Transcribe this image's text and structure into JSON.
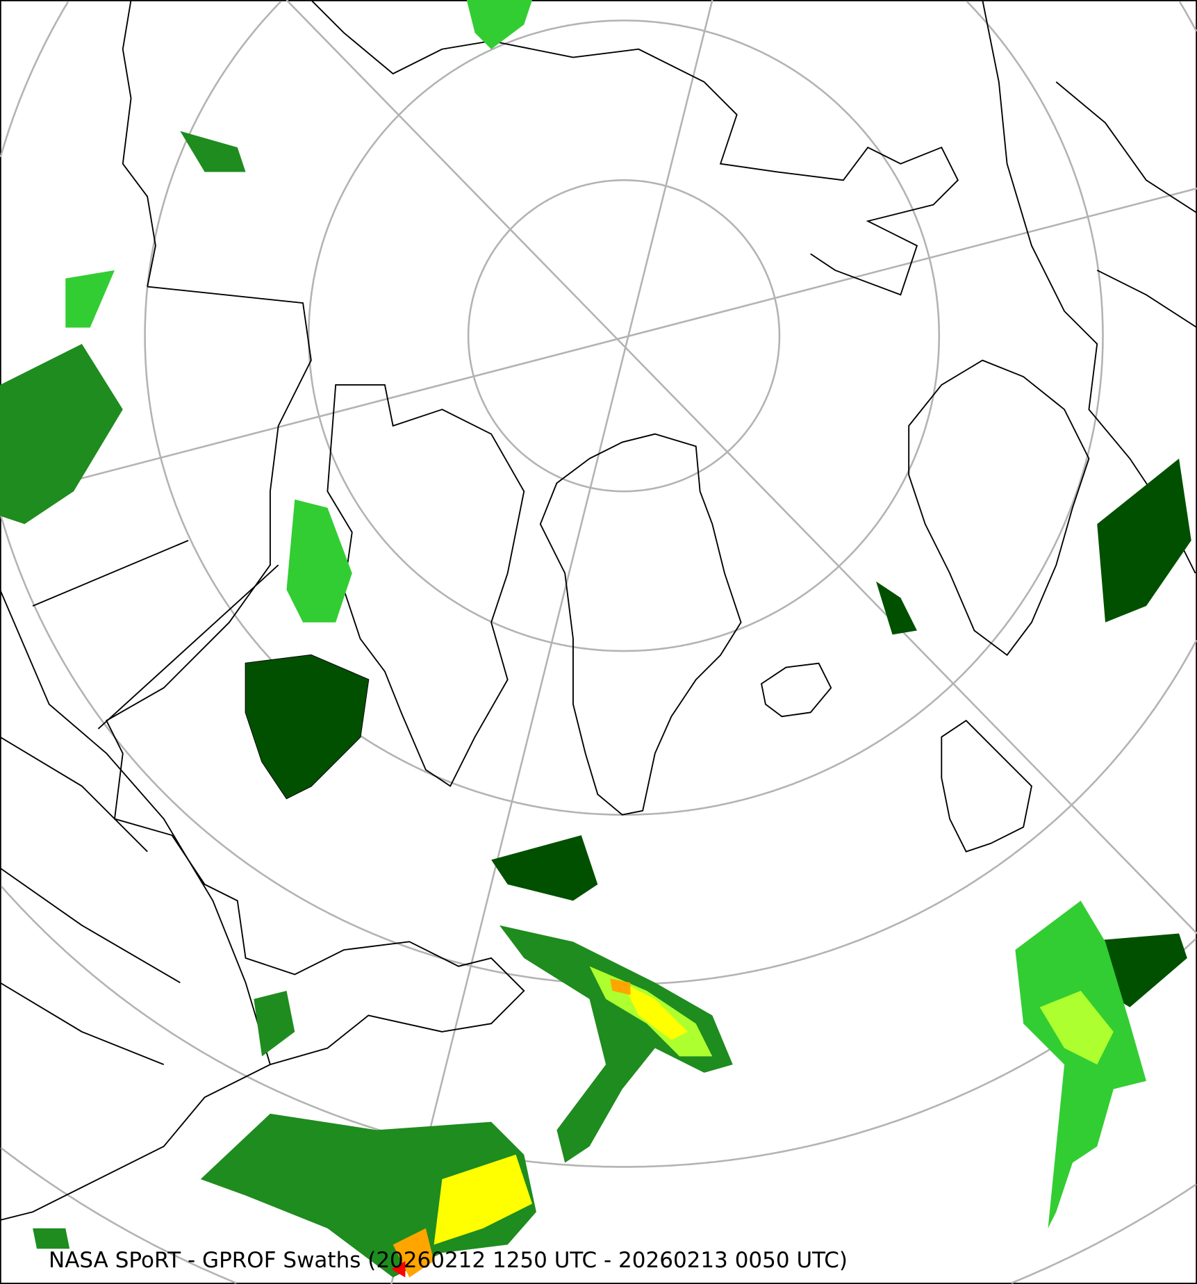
{
  "map": {
    "projection": "north-polar-stereographic",
    "caption": "NASA SPoRT - GPROF Swaths (20260212 1250 UTC - 20260213 0050 UTC)",
    "colors": {
      "graticule": "#b3b3b3",
      "coastline": "#000000",
      "precip_light": "#005000",
      "precip_low": "#1e8c1e",
      "precip_mod": "#32cd32",
      "precip_high": "#adff2f",
      "precip_heavy": "#ffff00",
      "precip_very_heavy": "#ffa500",
      "precip_extreme": "#ff0000"
    }
  }
}
